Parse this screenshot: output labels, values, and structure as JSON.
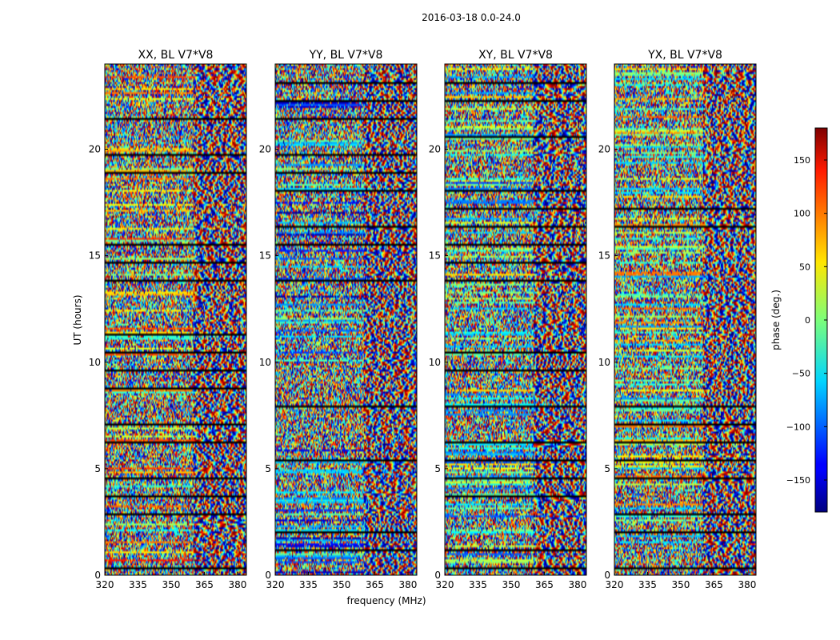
{
  "chart_data": {
    "type": "heatmap",
    "title": "2016-03-18 0.0-24.0",
    "xlabel": "frequency (MHz)",
    "ylabel": "UT (hours)",
    "xlim": [
      320,
      384
    ],
    "ylim": [
      0,
      24
    ],
    "x_ticks": [
      "320",
      "335",
      "350",
      "365",
      "380"
    ],
    "y_ticks": [
      "0",
      "5",
      "10",
      "15",
      "20"
    ],
    "colormap": "jet",
    "panels": [
      {
        "title": "XX, BL V7*V8"
      },
      {
        "title": "YY, BL V7*V8"
      },
      {
        "title": "XY, BL V7*V8"
      },
      {
        "title": "YX, BL V7*V8"
      }
    ],
    "colorbar": {
      "label": "phase (deg.)",
      "range": [
        -180,
        180
      ],
      "ticks": [
        "150",
        "100",
        "50",
        "0",
        "−50",
        "−100",
        "−150"
      ]
    }
  }
}
